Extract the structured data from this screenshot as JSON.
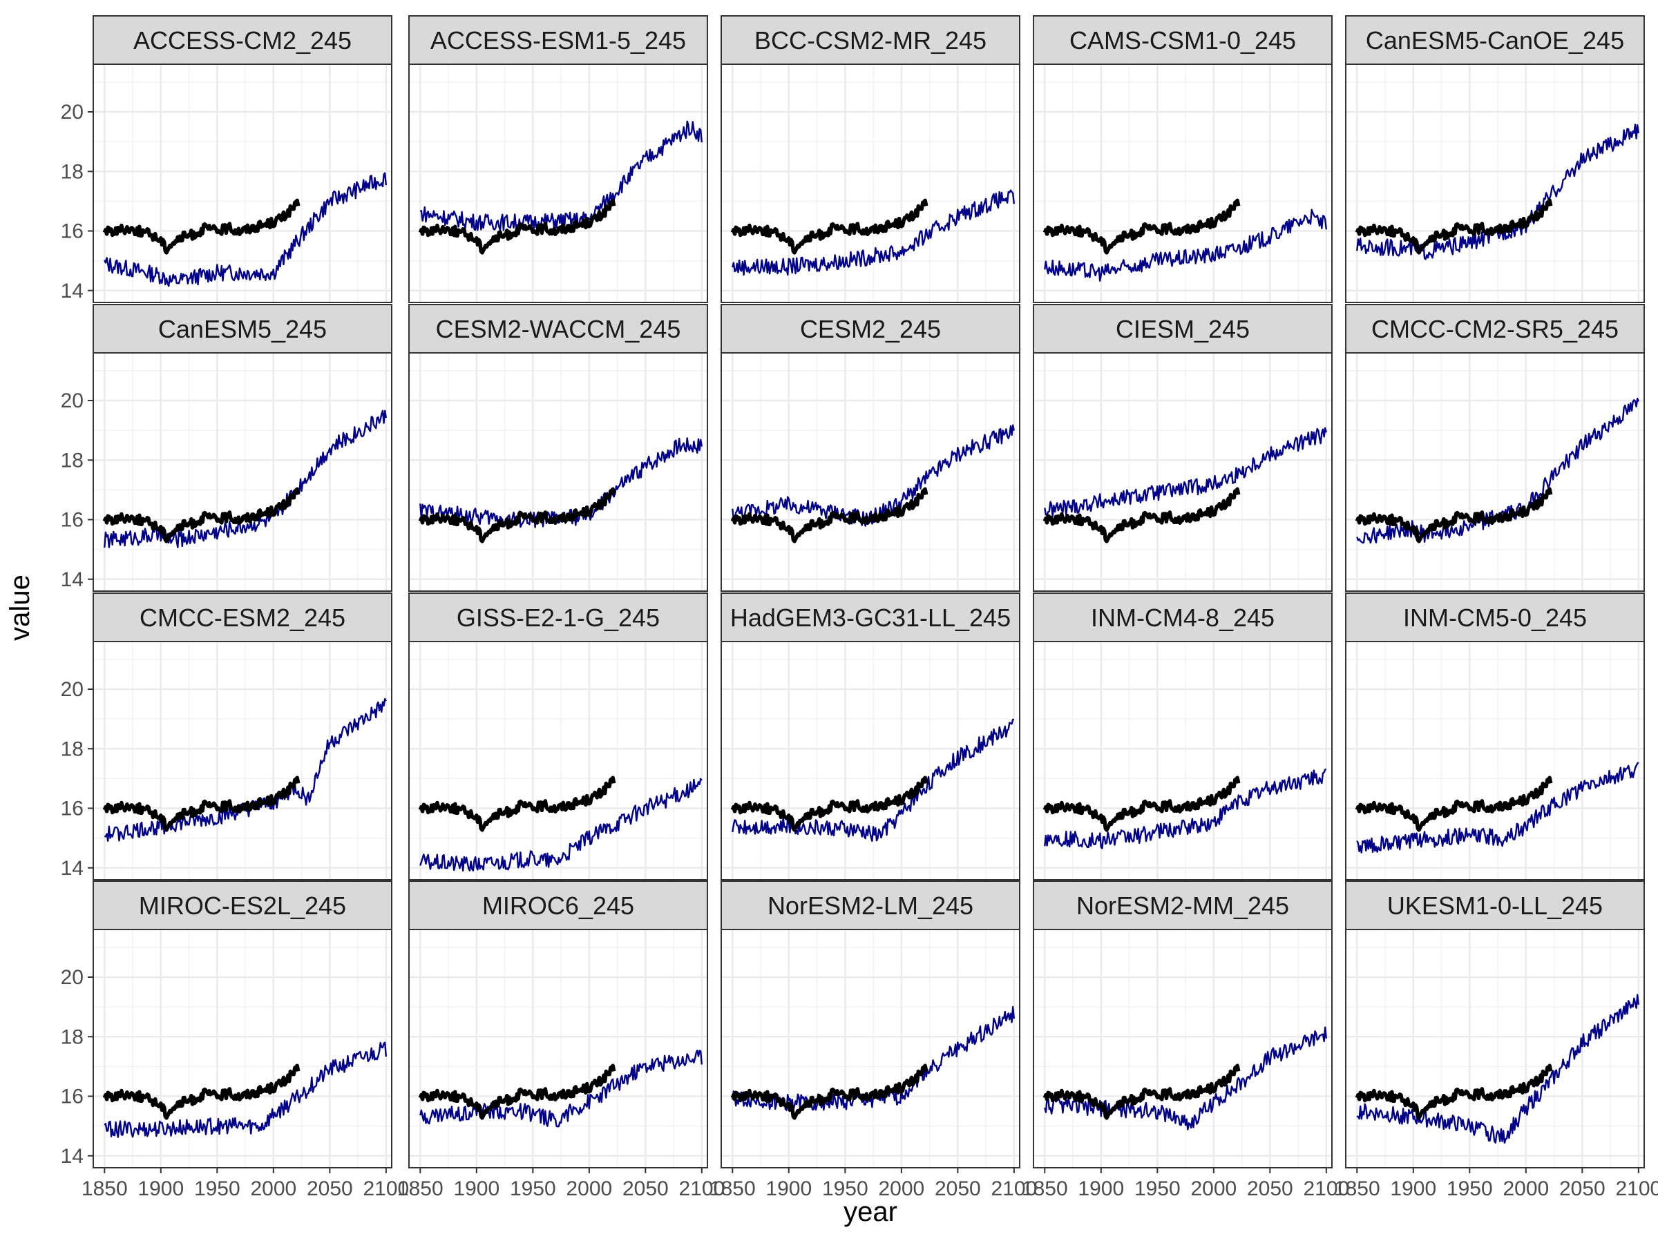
{
  "chart_data": {
    "type": "line",
    "xlabel": "year",
    "ylabel": "value",
    "xlim": [
      1840,
      2105
    ],
    "ylim": [
      13.6,
      21.6
    ],
    "x_ticks": [
      1850,
      1900,
      1950,
      2000,
      2050,
      2100
    ],
    "x_tick_labels": [
      "1850",
      "1900",
      "1950",
      "2000",
      "2050",
      "2100"
    ],
    "y_ticks": [
      14,
      16,
      18,
      20
    ],
    "y_tick_labels": [
      "14",
      "16",
      "18",
      "20"
    ],
    "grid": true,
    "legend": "none",
    "colors": {
      "observed": "#000000",
      "model": "#00008b",
      "strip_fill": "#d9d9d9",
      "panel_border": "#333333",
      "grid": "#ebebeb"
    },
    "observed": {
      "x": [
        1850,
        1860,
        1870,
        1880,
        1890,
        1900,
        1905,
        1910,
        1920,
        1930,
        1940,
        1950,
        1960,
        1970,
        1980,
        1990,
        2000,
        2010,
        2015,
        2022
      ],
      "y": [
        16.0,
        16.0,
        16.1,
        16.0,
        15.9,
        15.7,
        15.4,
        15.6,
        15.8,
        15.9,
        16.1,
        16.0,
        16.1,
        16.0,
        16.1,
        16.2,
        16.3,
        16.5,
        16.7,
        16.9
      ]
    },
    "panels": [
      {
        "title": "ACCESS-CM2_245",
        "x": [
          1850,
          1900,
          1910,
          1950,
          2000,
          2020,
          2050,
          2100
        ],
        "values": [
          14.9,
          14.5,
          14.3,
          14.6,
          14.6,
          15.6,
          17.0,
          17.8
        ]
      },
      {
        "title": "ACCESS-ESM1-5_245",
        "x": [
          1850,
          1900,
          1950,
          2000,
          2020,
          2050,
          2090,
          2100
        ],
        "values": [
          16.6,
          16.3,
          16.3,
          16.4,
          17.2,
          18.4,
          19.5,
          19.2
        ]
      },
      {
        "title": "BCC-CSM2-MR_245",
        "x": [
          1850,
          1900,
          1950,
          2000,
          2020,
          2050,
          2090,
          2100
        ],
        "values": [
          14.8,
          14.8,
          15.0,
          15.3,
          15.8,
          16.5,
          17.1,
          17.1
        ]
      },
      {
        "title": "CAMS-CSM1-0_245",
        "x": [
          1850,
          1900,
          1950,
          2000,
          2020,
          2050,
          2085,
          2100
        ],
        "values": [
          14.8,
          14.6,
          15.0,
          15.2,
          15.4,
          15.8,
          16.5,
          16.2
        ]
      },
      {
        "title": "CanESM5-CanOE_245",
        "x": [
          1850,
          1900,
          1910,
          1950,
          2000,
          2020,
          2050,
          2100
        ],
        "values": [
          15.5,
          15.4,
          15.3,
          15.6,
          16.2,
          17.1,
          18.4,
          19.4
        ]
      },
      {
        "title": "CanESM5_245",
        "x": [
          1850,
          1900,
          1910,
          1950,
          2000,
          2020,
          2050,
          2100
        ],
        "values": [
          15.3,
          15.5,
          15.3,
          15.6,
          16.0,
          17.0,
          18.4,
          19.5
        ]
      },
      {
        "title": "CESM2-WACCM_245",
        "x": [
          1850,
          1900,
          1950,
          2000,
          2020,
          2050,
          2080,
          2100
        ],
        "values": [
          16.3,
          16.1,
          16.0,
          16.1,
          16.9,
          17.8,
          18.5,
          18.5
        ]
      },
      {
        "title": "CESM2_245",
        "x": [
          1850,
          1900,
          1950,
          1970,
          2000,
          2020,
          2050,
          2100
        ],
        "values": [
          16.2,
          16.5,
          16.2,
          16.0,
          16.6,
          17.3,
          18.2,
          19.0
        ]
      },
      {
        "title": "CIESM_245",
        "x": [
          1850,
          1900,
          1950,
          2000,
          2020,
          2050,
          2100
        ],
        "values": [
          16.3,
          16.6,
          16.9,
          17.2,
          17.5,
          18.2,
          18.9
        ]
      },
      {
        "title": "CMCC-CM2-SR5_245",
        "x": [
          1850,
          1900,
          1910,
          1950,
          2000,
          2020,
          2050,
          2100
        ],
        "values": [
          15.4,
          15.7,
          15.5,
          15.8,
          16.4,
          17.3,
          18.5,
          19.9
        ]
      },
      {
        "title": "CMCC-ESM2_245",
        "x": [
          1850,
          1900,
          1950,
          2000,
          2020,
          2030,
          2050,
          2100
        ],
        "values": [
          15.1,
          15.4,
          15.7,
          16.2,
          16.7,
          16.3,
          18.2,
          19.5
        ]
      },
      {
        "title": "GISS-E2-1-G_245",
        "x": [
          1850,
          1900,
          1950,
          1970,
          2000,
          2050,
          2100
        ],
        "values": [
          14.2,
          14.1,
          14.3,
          14.2,
          15.0,
          16.0,
          16.8
        ]
      },
      {
        "title": "HadGEM3-GC31-LL_245",
        "x": [
          1850,
          1900,
          1950,
          1980,
          2000,
          2020,
          2050,
          2100
        ],
        "values": [
          15.4,
          15.4,
          15.3,
          15.1,
          15.8,
          16.7,
          17.7,
          18.8
        ]
      },
      {
        "title": "INM-CM4-8_245",
        "x": [
          1850,
          1900,
          1950,
          2000,
          2020,
          2050,
          2100
        ],
        "values": [
          15.0,
          14.9,
          15.2,
          15.5,
          16.2,
          16.7,
          17.1
        ]
      },
      {
        "title": "INM-CM5-0_245",
        "x": [
          1850,
          1900,
          1950,
          1980,
          2000,
          2020,
          2050,
          2100
        ],
        "values": [
          14.7,
          14.9,
          15.1,
          15.0,
          15.4,
          16.0,
          16.7,
          17.3
        ]
      },
      {
        "title": "MIROC-ES2L_245",
        "x": [
          1850,
          1900,
          1950,
          1990,
          2000,
          2020,
          2050,
          2100
        ],
        "values": [
          14.9,
          14.9,
          15.0,
          15.0,
          15.4,
          15.9,
          16.9,
          17.6
        ]
      },
      {
        "title": "MIROC6_245",
        "x": [
          1850,
          1900,
          1940,
          1970,
          2000,
          2020,
          2050,
          2100
        ],
        "values": [
          15.3,
          15.5,
          15.5,
          15.2,
          15.8,
          16.3,
          17.0,
          17.3
        ]
      },
      {
        "title": "NorESM2-LM_245",
        "x": [
          1850,
          1900,
          1950,
          2000,
          2020,
          2050,
          2100
        ],
        "values": [
          15.9,
          15.8,
          15.8,
          16.0,
          16.8,
          17.6,
          18.8
        ]
      },
      {
        "title": "NorESM2-MM_245",
        "x": [
          1850,
          1900,
          1950,
          1980,
          2000,
          2020,
          2050,
          2100
        ],
        "values": [
          15.7,
          15.6,
          15.5,
          15.1,
          15.8,
          16.3,
          17.3,
          18.1
        ]
      },
      {
        "title": "UKESM1-0-LL_245",
        "x": [
          1850,
          1900,
          1950,
          1980,
          2000,
          2020,
          2050,
          2100
        ],
        "values": [
          15.5,
          15.3,
          15.0,
          14.6,
          15.6,
          16.4,
          17.8,
          19.2
        ]
      }
    ]
  }
}
